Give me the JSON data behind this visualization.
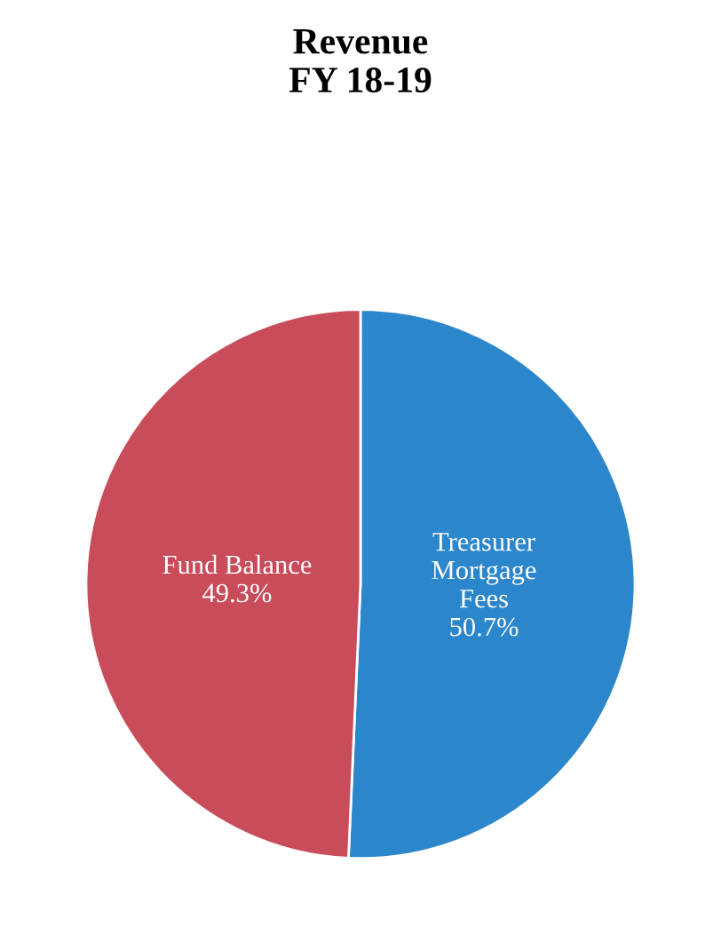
{
  "chart_data": {
    "type": "pie",
    "title": "Revenue\nFY 18-19",
    "categories": [
      "Treasurer\nMortgage\nFees",
      "Fund Balance"
    ],
    "values": [
      50.7,
      49.3
    ],
    "colors": [
      "#2c86cc",
      "#c84c5a"
    ],
    "value_labels": [
      "50.7%",
      "49.3%"
    ],
    "legend": false
  }
}
